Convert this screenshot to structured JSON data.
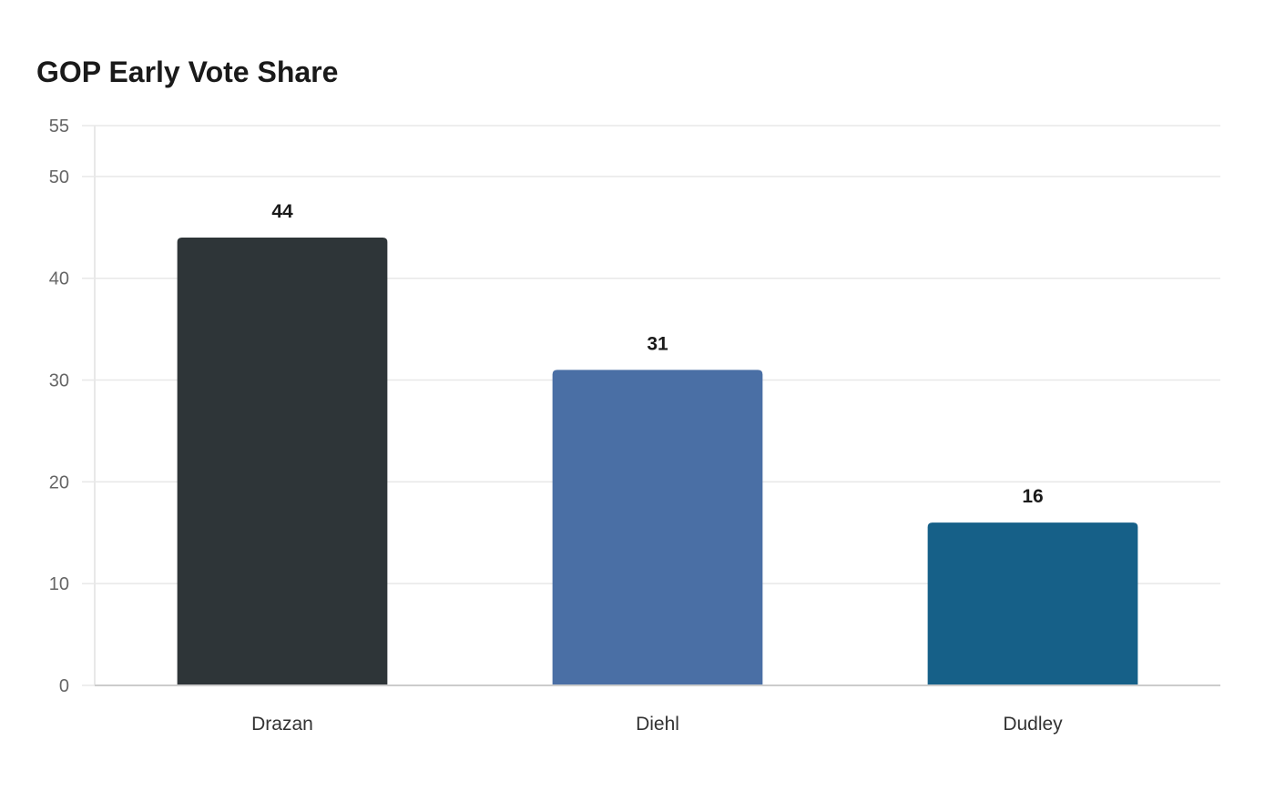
{
  "chart_data": {
    "type": "bar",
    "title": "GOP Early Vote Share",
    "xlabel": "",
    "ylabel": "",
    "categories": [
      "Drazan",
      "Diehl",
      "Dudley"
    ],
    "values": [
      44,
      31,
      16
    ],
    "colors": [
      "#2e3538",
      "#4a6fa5",
      "#166088"
    ],
    "ylim": [
      0,
      55
    ],
    "yticks": [
      0,
      10,
      20,
      30,
      40,
      50,
      55
    ],
    "grid": true,
    "data_labels": true,
    "gridline_color": "#e8e8e8",
    "axis_color": "#cccccc"
  }
}
